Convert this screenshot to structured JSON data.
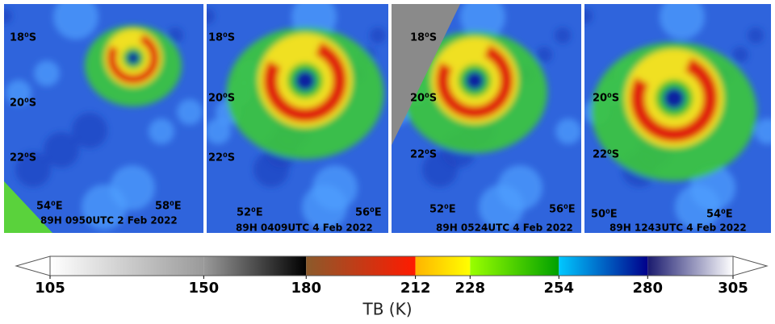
{
  "panels": [
    {
      "lat_labels": [
        "18⁰S",
        "20⁰S",
        "22⁰S"
      ],
      "lon_labels": [
        "54⁰E",
        "58⁰E"
      ],
      "caption": "89H 0950UTC 2 Feb 2022"
    },
    {
      "lat_labels": [
        "18⁰S",
        "20⁰S",
        "22⁰S"
      ],
      "lon_labels": [
        "52⁰E",
        "56⁰E"
      ],
      "caption": "89H 0409UTC 4 Feb 2022"
    },
    {
      "lat_labels": [
        "18⁰S",
        "20⁰S",
        "22⁰S"
      ],
      "lon_labels": [
        "52⁰E",
        "56⁰E"
      ],
      "caption": "89H 0524UTC 4 Feb 2022"
    },
    {
      "lat_labels": [
        "20⁰S",
        "22⁰S"
      ],
      "lon_labels": [
        "50⁰E",
        "54⁰E"
      ],
      "caption": "89H 1243UTC 4 Feb 2022"
    }
  ],
  "colorbar": {
    "label": "TB (K)",
    "range": [
      105,
      305
    ],
    "ticks": [
      105,
      150,
      180,
      212,
      228,
      254,
      280,
      305
    ],
    "segment_colors": [
      [
        "#ffffff",
        "#9a9a9a"
      ],
      [
        "#9a9a9a",
        "#000000"
      ],
      [
        "#8b5a2b",
        "#ff1a00"
      ],
      [
        "#ffb400",
        "#ffff00"
      ],
      [
        "#9aff00",
        "#00a000"
      ],
      [
        "#00c8ff",
        "#00008b"
      ],
      [
        "#1a1a6e",
        "#ffffff"
      ]
    ]
  }
}
